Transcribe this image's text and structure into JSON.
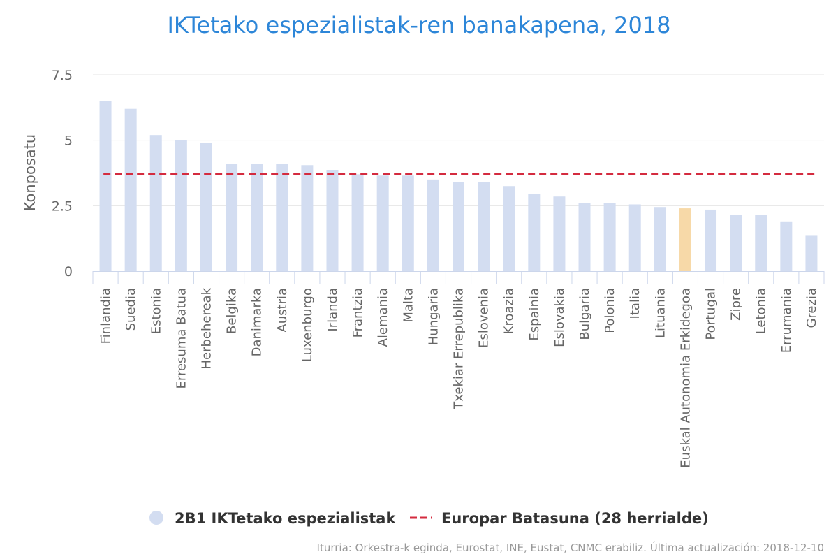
{
  "chart_data": {
    "type": "bar",
    "title": "IKTetako espezialistak-ren banakapena, 2018",
    "ylabel": "Konposatu",
    "xlabel": "",
    "ylim": [
      0,
      7.5
    ],
    "yticks": [
      0,
      2.5,
      5,
      7.5
    ],
    "ytick_labels": [
      "0",
      "2.5",
      "5",
      "7.5"
    ],
    "categories": [
      "Finlandia",
      "Suedia",
      "Estonia",
      "Erresuma Batua",
      "Herbehereak",
      "Belgika",
      "Danimarka",
      "Austria",
      "Luxenburgo",
      "Irlanda",
      "Frantzia",
      "Alemania",
      "Malta",
      "Hungaria",
      "Txekiar Errepublika",
      "Eslovenia",
      "Kroazia",
      "Espainia",
      "Eslovakia",
      "Bulgaria",
      "Polonia",
      "Italia",
      "Lituania",
      "Euskal Autonomia Erkidegoa",
      "Portugal",
      "Zipre",
      "Letonia",
      "Errumania",
      "Grezia"
    ],
    "series": [
      {
        "name": "2B1 IKTetako espezialistak",
        "type": "bar",
        "color": "#d3ddf1",
        "highlight_color": "#f7d9a8",
        "highlight_category": "Euskal Autonomia Erkidegoa",
        "values": [
          6.5,
          6.2,
          5.2,
          5.0,
          4.9,
          4.1,
          4.1,
          4.1,
          4.05,
          3.85,
          3.7,
          3.65,
          3.65,
          3.5,
          3.4,
          3.4,
          3.25,
          2.95,
          2.85,
          2.6,
          2.6,
          2.55,
          2.45,
          2.4,
          2.35,
          2.15,
          2.15,
          1.9,
          1.35
        ]
      },
      {
        "name": "Europar Batasuna (28 herrialde)",
        "type": "line",
        "style": "dashed",
        "color": "#d42b3f",
        "value": 3.7
      }
    ],
    "grid": true,
    "legend_position": "bottom",
    "credits": "Iturria: Orkestra-k eginda, Eurostat, INE, Eustat, CNMC erabiliz. Última actualización: 2018-12-10"
  }
}
